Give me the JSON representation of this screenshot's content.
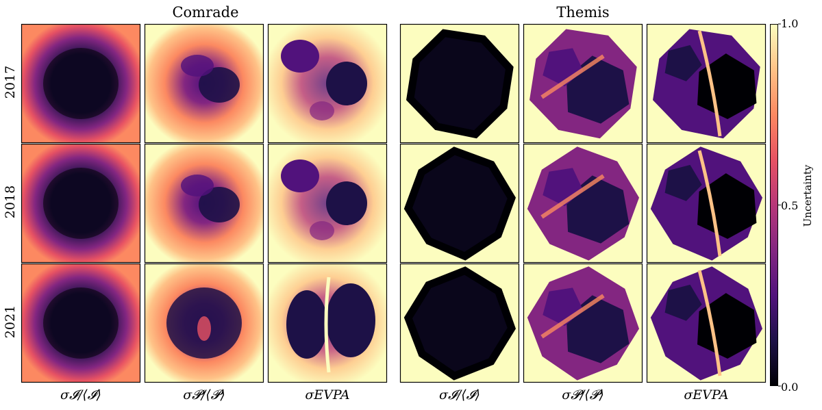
{
  "chart_data": {
    "type": "heatmap",
    "groups": [
      "Comrade",
      "Themis"
    ],
    "rows": [
      "2017",
      "2018",
      "2021"
    ],
    "columns": [
      "σ𝓘/⟨𝓘⟩",
      "σ𝓟/⟨𝓟⟩",
      "σEVPA",
      "σ𝓘/⟨𝓘⟩",
      "σ𝓟/⟨𝓟⟩",
      "σEVPA"
    ],
    "colorbar": {
      "label": "Uncertainty",
      "range": [
        0.0,
        1.0
      ],
      "ticks": [
        "0.0",
        "0.5",
        "1.0"
      ],
      "colormap": "magma",
      "stops": [
        "#000004",
        "#1d1147",
        "#51127c",
        "#832681",
        "#b73779",
        "#e75263",
        "#fc8961",
        "#fec287",
        "#fcfdbf"
      ]
    },
    "panel_background": "#fcfdbf"
  },
  "labels": {
    "group_comrade": "Comrade",
    "group_themis": "Themis",
    "row_2017": "2017",
    "row_2018": "2018",
    "row_2021": "2021",
    "col_1": "σ𝓘/⟨𝓘⟩",
    "col_2": "σ𝓟/⟨𝓟⟩",
    "col_3": "σEVPA",
    "col_4": "σ𝓘/⟨𝓘⟩",
    "col_5": "σ𝓟/⟨𝓟⟩",
    "col_6": "σEVPA",
    "cb_label": "Uncertainty",
    "cb_top": "1.0",
    "cb_mid": "0.5",
    "cb_bot": "0.0"
  }
}
